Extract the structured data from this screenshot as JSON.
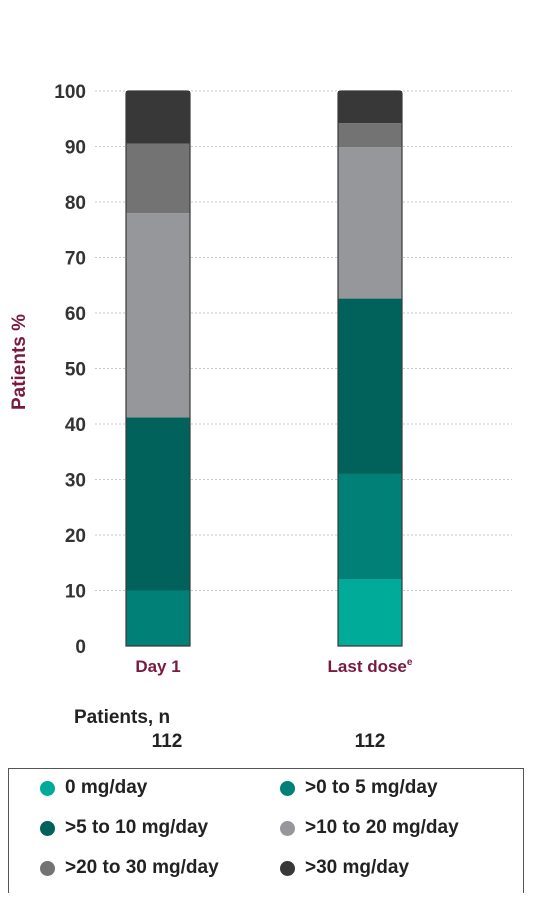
{
  "chart_data": {
    "type": "bar",
    "stacked": true,
    "ylabel": "Patients %",
    "ylim": [
      0,
      100
    ],
    "yticks": [
      0,
      10,
      20,
      30,
      40,
      50,
      60,
      70,
      80,
      90,
      100
    ],
    "grid": "horizontal dashed",
    "categories": [
      "Day 1",
      "Last dose"
    ],
    "category_superscripts": [
      "",
      "e"
    ],
    "series": [
      {
        "name": "0 mg/day",
        "color": "#00ab9a",
        "values": [
          0,
          12
        ]
      },
      {
        "name": ">0 to 5 mg/day",
        "color": "#008077",
        "values": [
          10,
          19
        ]
      },
      {
        "name": ">5 to 10 mg/day",
        "color": "#00625a",
        "values": [
          31.2,
          31.6
        ]
      },
      {
        "name": ">10 to 20 mg/day",
        "color": "#96979b",
        "values": [
          36.8,
          27.3
        ]
      },
      {
        "name": ">20 to 30 mg/day",
        "color": "#737373",
        "values": [
          12.5,
          4.3
        ]
      },
      {
        "name": ">30 mg/day",
        "color": "#383838",
        "values": [
          9.5,
          5.8
        ]
      }
    ],
    "legend_position": "bottom"
  },
  "patients": {
    "title": "Patients, n",
    "counts": [
      "112",
      "112"
    ]
  }
}
